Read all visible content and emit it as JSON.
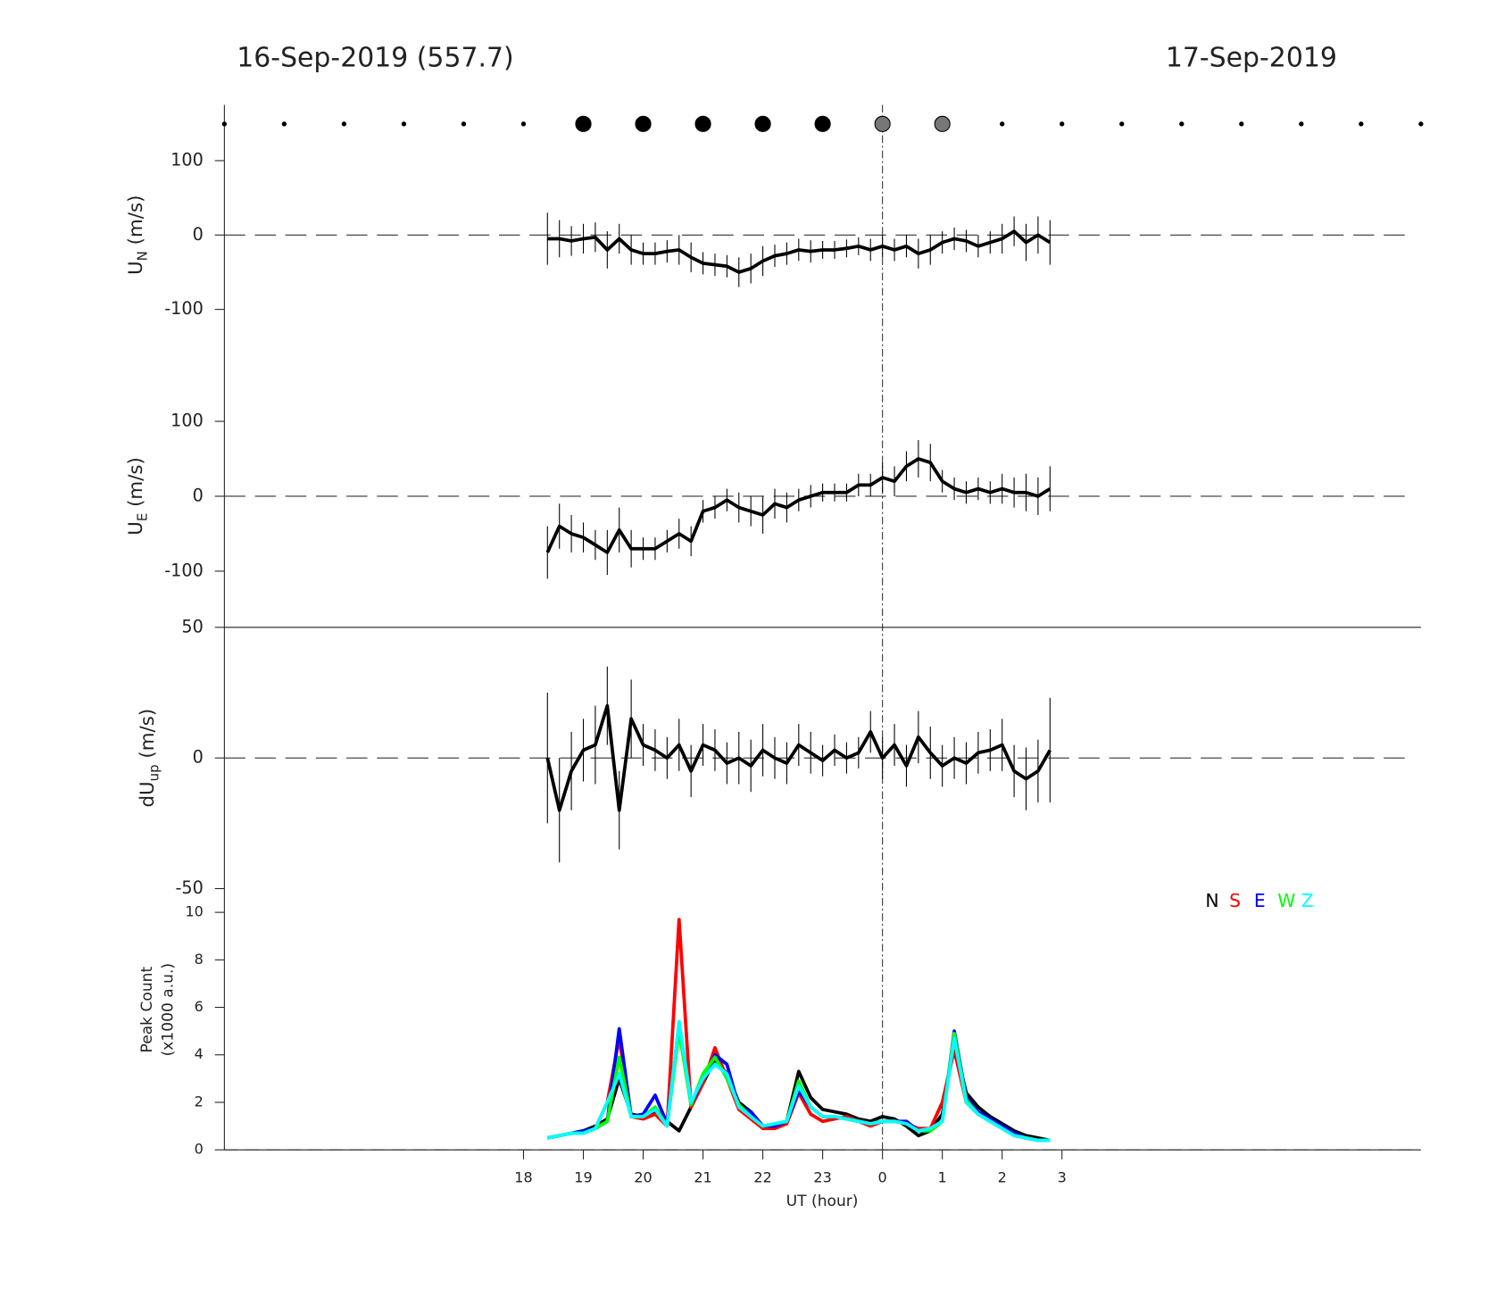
{
  "header": {
    "left_title": "16-Sep-2019 (557.7)",
    "right_title": "17-Sep-2019"
  },
  "x_axis": {
    "label": "UT (hour)",
    "xlim": [
      13,
      33
    ],
    "vline": 24,
    "xticks": [
      18,
      19,
      20,
      21,
      22,
      23,
      {
        "value": 24,
        "label": "0"
      },
      {
        "value": 25,
        "label": "1"
      },
      {
        "value": 26,
        "label": "2"
      },
      {
        "value": 27,
        "label": "3"
      }
    ]
  },
  "chart_data": [
    {
      "type": "markers",
      "x": [
        13,
        14,
        15,
        16,
        17,
        18,
        19,
        20,
        21,
        22,
        23,
        24,
        25,
        26,
        27,
        28,
        29,
        30,
        31,
        32,
        33
      ],
      "sizes": [
        2,
        2,
        2,
        2,
        2,
        2,
        8,
        8,
        8,
        8,
        8,
        8,
        8,
        2,
        2,
        2,
        2,
        2,
        2,
        2,
        2
      ],
      "colors": [
        "#000",
        "#000",
        "#000",
        "#000",
        "#000",
        "#000",
        "#000",
        "#000",
        "#000",
        "#000",
        "#000",
        "#777",
        "#777",
        "#000",
        "#000",
        "#000",
        "#000",
        "#000",
        "#000",
        "#000",
        "#000"
      ]
    },
    {
      "type": "errorline",
      "ylabel": {
        "main": "U",
        "sub": "N",
        "unit": " (m/s)"
      },
      "ylim": [
        -175,
        175
      ],
      "yticks": [
        -100,
        0,
        100
      ],
      "hline": 0,
      "color": "#000000",
      "x": [
        18.4,
        18.6,
        18.8,
        19.0,
        19.2,
        19.4,
        19.6,
        19.8,
        20.0,
        20.2,
        20.4,
        20.6,
        20.8,
        21.0,
        21.2,
        21.4,
        21.6,
        21.8,
        22.0,
        22.2,
        22.4,
        22.6,
        22.8,
        23.0,
        23.2,
        23.4,
        23.6,
        23.8,
        24.0,
        24.2,
        24.4,
        24.6,
        24.8,
        25.0,
        25.2,
        25.4,
        25.6,
        25.8,
        26.0,
        26.2,
        26.4,
        26.6,
        26.8
      ],
      "values": [
        -5,
        -5,
        -8,
        -5,
        -3,
        -20,
        -5,
        -20,
        -25,
        -25,
        -22,
        -20,
        -30,
        -38,
        -40,
        -42,
        -50,
        -45,
        -35,
        -28,
        -25,
        -20,
        -22,
        -20,
        -20,
        -18,
        -15,
        -20,
        -15,
        -20,
        -15,
        -25,
        -20,
        -10,
        -5,
        -8,
        -15,
        -10,
        -5,
        5,
        -10,
        0,
        -10
      ],
      "errors": [
        35,
        25,
        20,
        20,
        20,
        25,
        20,
        20,
        15,
        15,
        15,
        20,
        20,
        15,
        15,
        15,
        20,
        20,
        20,
        15,
        15,
        15,
        15,
        12,
        12,
        12,
        12,
        15,
        15,
        15,
        15,
        20,
        20,
        15,
        15,
        15,
        15,
        15,
        20,
        20,
        25,
        25,
        30
      ]
    },
    {
      "type": "errorline",
      "ylabel": {
        "main": "U",
        "sub": "E",
        "unit": " (m/s)"
      },
      "ylim": [
        -175,
        175
      ],
      "yticks": [
        -100,
        0,
        100
      ],
      "hline": 0,
      "color": "#000000",
      "x": [
        18.4,
        18.6,
        18.8,
        19.0,
        19.2,
        19.4,
        19.6,
        19.8,
        20.0,
        20.2,
        20.4,
        20.6,
        20.8,
        21.0,
        21.2,
        21.4,
        21.6,
        21.8,
        22.0,
        22.2,
        22.4,
        22.6,
        22.8,
        23.0,
        23.2,
        23.4,
        23.6,
        23.8,
        24.0,
        24.2,
        24.4,
        24.6,
        24.8,
        25.0,
        25.2,
        25.4,
        25.6,
        25.8,
        26.0,
        26.2,
        26.4,
        26.6,
        26.8
      ],
      "values": [
        -75,
        -40,
        -50,
        -55,
        -65,
        -75,
        -45,
        -70,
        -70,
        -70,
        -60,
        -50,
        -60,
        -20,
        -15,
        -5,
        -15,
        -20,
        -25,
        -10,
        -15,
        -5,
        0,
        5,
        5,
        5,
        15,
        15,
        25,
        20,
        40,
        50,
        45,
        20,
        10,
        5,
        10,
        5,
        10,
        5,
        5,
        0,
        10
      ],
      "errors": [
        35,
        30,
        25,
        20,
        20,
        30,
        30,
        25,
        15,
        15,
        15,
        20,
        20,
        15,
        15,
        15,
        20,
        20,
        25,
        20,
        20,
        15,
        15,
        12,
        12,
        12,
        15,
        15,
        20,
        20,
        20,
        25,
        25,
        15,
        15,
        15,
        15,
        15,
        20,
        20,
        25,
        25,
        30
      ]
    },
    {
      "type": "errorline",
      "ylabel": {
        "main": "dU",
        "sub": "up",
        "unit": " (m/s)"
      },
      "ylim": [
        -50,
        50
      ],
      "yticks": [
        -50,
        0,
        50
      ],
      "hline": 0,
      "top_border": true,
      "color": "#000000",
      "x": [
        18.4,
        18.6,
        18.8,
        19.0,
        19.2,
        19.4,
        19.6,
        19.8,
        20.0,
        20.2,
        20.4,
        20.6,
        20.8,
        21.0,
        21.2,
        21.4,
        21.6,
        21.8,
        22.0,
        22.2,
        22.4,
        22.6,
        22.8,
        23.0,
        23.2,
        23.4,
        23.6,
        23.8,
        24.0,
        24.2,
        24.4,
        24.6,
        24.8,
        25.0,
        25.2,
        25.4,
        25.6,
        25.8,
        26.0,
        26.2,
        26.4,
        26.6,
        26.8
      ],
      "values": [
        0,
        -20,
        -5,
        3,
        5,
        20,
        -20,
        15,
        5,
        3,
        0,
        5,
        -5,
        5,
        3,
        -2,
        0,
        -3,
        3,
        0,
        -2,
        5,
        2,
        -1,
        3,
        0,
        2,
        10,
        0,
        5,
        -3,
        8,
        2,
        -3,
        0,
        -2,
        2,
        3,
        5,
        -5,
        -8,
        -5,
        3
      ],
      "errors": [
        25,
        20,
        15,
        12,
        15,
        15,
        15,
        15,
        8,
        8,
        8,
        10,
        10,
        8,
        8,
        8,
        10,
        10,
        10,
        8,
        8,
        8,
        8,
        6,
        6,
        6,
        6,
        8,
        8,
        8,
        8,
        10,
        10,
        8,
        8,
        8,
        8,
        8,
        10,
        10,
        12,
        12,
        20
      ]
    },
    {
      "type": "line",
      "ylabel": [
        "Peak Count",
        "(x1000 a.u.)"
      ],
      "ylim": [
        0,
        11
      ],
      "yticks": [
        0,
        2,
        4,
        6,
        8,
        10
      ],
      "hline": 0,
      "legend": "top-right",
      "x": [
        18.4,
        18.6,
        18.8,
        19.0,
        19.2,
        19.4,
        19.6,
        19.8,
        20.0,
        20.2,
        20.4,
        20.6,
        20.8,
        21.0,
        21.2,
        21.4,
        21.6,
        21.8,
        22.0,
        22.2,
        22.4,
        22.6,
        22.8,
        23.0,
        23.2,
        23.4,
        23.6,
        23.8,
        24.0,
        24.2,
        24.4,
        24.6,
        24.8,
        25.0,
        25.2,
        25.4,
        25.6,
        25.8,
        26.0,
        26.2,
        26.4,
        26.6,
        26.8
      ],
      "series": [
        {
          "name": "N",
          "color": "#000000",
          "values": [
            0.5,
            0.6,
            0.7,
            0.8,
            1.0,
            1.3,
            3.0,
            1.5,
            1.4,
            1.6,
            1.2,
            0.8,
            1.8,
            2.8,
            3.8,
            3.2,
            2.0,
            1.6,
            1.0,
            1.0,
            1.2,
            3.3,
            2.2,
            1.7,
            1.6,
            1.5,
            1.3,
            1.2,
            1.4,
            1.3,
            1.0,
            0.6,
            0.8,
            1.5,
            4.5,
            2.4,
            1.8,
            1.4,
            1.1,
            0.8,
            0.6,
            0.5,
            0.4
          ]
        },
        {
          "name": "S",
          "color": "#ff0000",
          "values": [
            0.5,
            0.6,
            0.7,
            0.7,
            0.9,
            2.0,
            4.7,
            1.4,
            1.3,
            1.5,
            1.0,
            9.7,
            1.8,
            2.8,
            4.3,
            3.0,
            1.7,
            1.3,
            0.9,
            0.9,
            1.1,
            2.4,
            1.5,
            1.2,
            1.3,
            1.4,
            1.2,
            1.0,
            1.2,
            1.2,
            1.1,
            0.9,
            0.9,
            2.0,
            4.2,
            2.0,
            1.5,
            1.2,
            0.9,
            0.6,
            0.5,
            0.4,
            0.4
          ]
        },
        {
          "name": "E",
          "color": "#0000ff",
          "values": [
            0.5,
            0.6,
            0.7,
            0.8,
            0.9,
            1.2,
            5.1,
            1.4,
            1.5,
            2.3,
            1.1,
            5.3,
            1.9,
            3.0,
            4.0,
            3.6,
            1.8,
            1.6,
            1.0,
            1.0,
            1.2,
            2.5,
            1.8,
            1.4,
            1.4,
            1.3,
            1.2,
            1.1,
            1.2,
            1.2,
            1.2,
            0.8,
            0.8,
            1.2,
            5.0,
            2.2,
            1.6,
            1.3,
            1.0,
            0.7,
            0.5,
            0.4,
            0.4
          ]
        },
        {
          "name": "W",
          "color": "#00ff00",
          "values": [
            0.5,
            0.6,
            0.7,
            0.7,
            0.9,
            1.2,
            3.9,
            1.4,
            1.4,
            1.8,
            1.0,
            5.0,
            1.9,
            3.2,
            3.9,
            3.0,
            1.9,
            1.4,
            1.0,
            1.1,
            1.2,
            2.9,
            1.8,
            1.4,
            1.4,
            1.3,
            1.2,
            1.1,
            1.2,
            1.2,
            1.1,
            0.8,
            0.8,
            1.2,
            4.9,
            2.1,
            1.5,
            1.2,
            0.9,
            0.6,
            0.5,
            0.4,
            0.4
          ]
        },
        {
          "name": "Z",
          "color": "#00ffff",
          "values": [
            0.5,
            0.6,
            0.7,
            0.7,
            0.9,
            2.0,
            3.2,
            1.4,
            1.4,
            1.7,
            1.0,
            5.4,
            2.0,
            3.0,
            3.6,
            3.2,
            1.8,
            1.4,
            1.0,
            1.1,
            1.2,
            2.7,
            1.8,
            1.4,
            1.4,
            1.3,
            1.2,
            1.1,
            1.2,
            1.2,
            1.1,
            0.8,
            0.9,
            1.2,
            4.7,
            2.0,
            1.5,
            1.2,
            0.9,
            0.6,
            0.5,
            0.4,
            0.4
          ]
        }
      ]
    }
  ]
}
